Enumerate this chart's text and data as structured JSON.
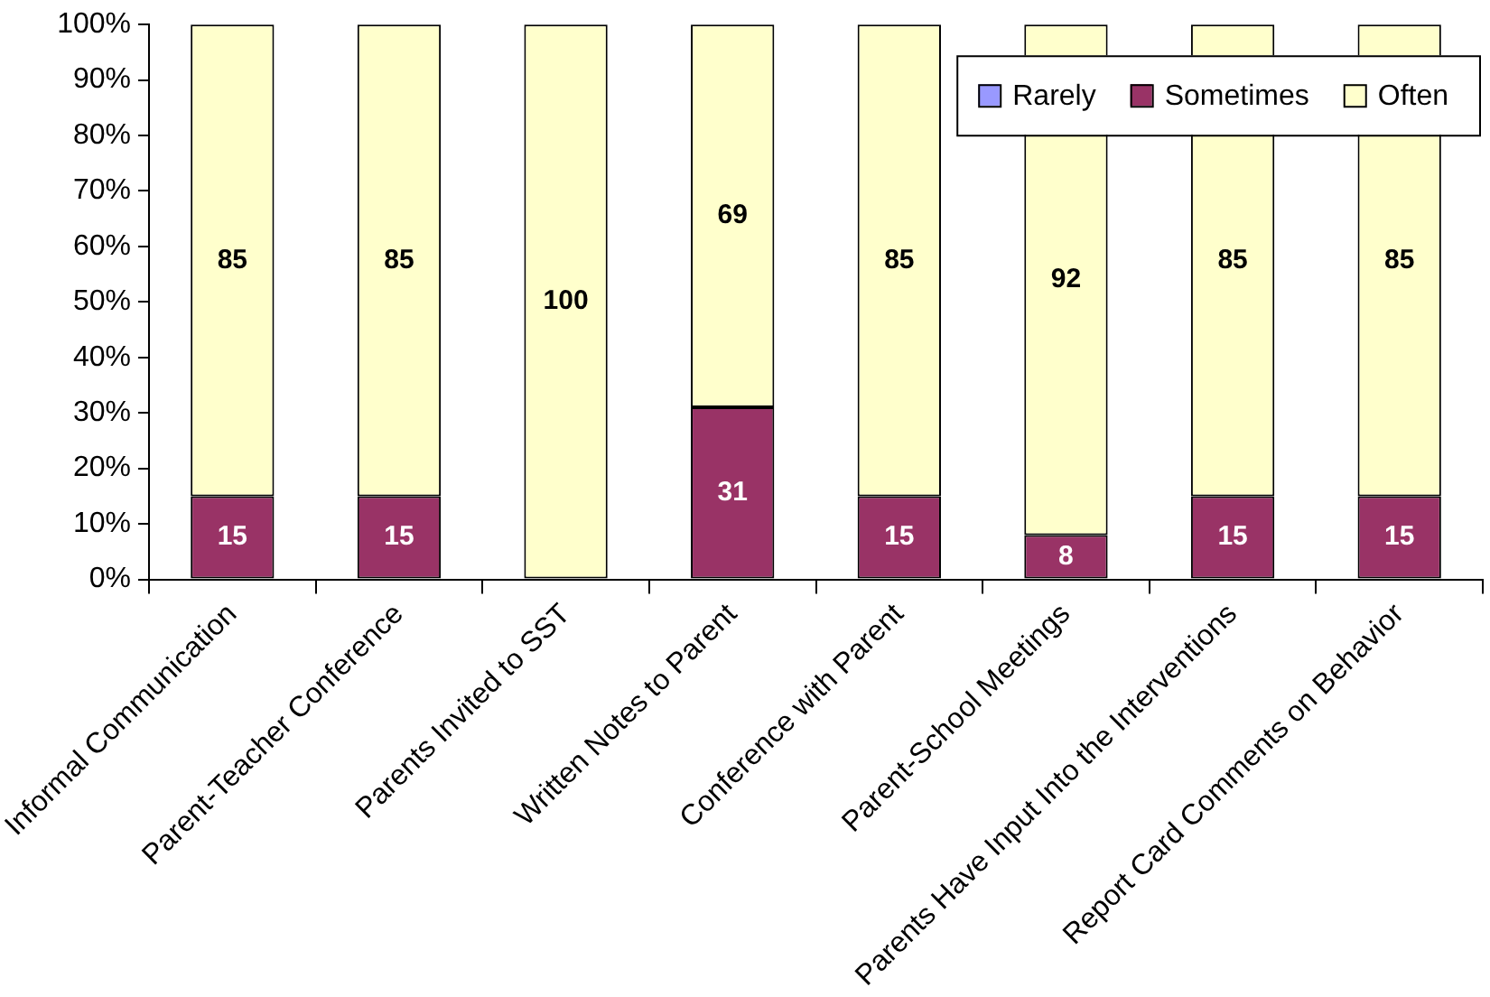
{
  "chart_data": {
    "type": "bar",
    "stacked": true,
    "categories": [
      "Informal Communication",
      "Parent-Teacher Conference",
      "Parents Invited to SST",
      "Written Notes to Parent",
      "Conference with Parent",
      "Parent-School Meetings",
      "Parents Have Input Into the Interventions",
      "Report Card Comments on Behavior"
    ],
    "series": [
      {
        "name": "Rarely",
        "color": "#9999ff",
        "values": [
          0,
          0,
          0,
          0,
          0,
          0,
          0,
          0
        ],
        "value_labels": [
          null,
          null,
          null,
          null,
          null,
          null,
          null,
          null
        ]
      },
      {
        "name": "Sometimes",
        "color": "#993366",
        "values": [
          15,
          15,
          0,
          31,
          15,
          8,
          15,
          15
        ],
        "value_labels": [
          "15",
          "15",
          null,
          "31",
          "15",
          "8",
          "15",
          "15"
        ]
      },
      {
        "name": "Often",
        "color": "#ffffcc",
        "values": [
          85,
          85,
          100,
          69,
          85,
          92,
          85,
          85
        ],
        "value_labels": [
          "85",
          "85",
          "100",
          "69",
          "85",
          "92",
          "85",
          "85"
        ]
      }
    ],
    "ylim": [
      0,
      100
    ],
    "yticks": [
      {
        "value": 0,
        "label": "0%"
      },
      {
        "value": 10,
        "label": "10%"
      },
      {
        "value": 20,
        "label": "20%"
      },
      {
        "value": 30,
        "label": "30%"
      },
      {
        "value": 40,
        "label": "40%"
      },
      {
        "value": 50,
        "label": "50%"
      },
      {
        "value": 60,
        "label": "60%"
      },
      {
        "value": 70,
        "label": "70%"
      },
      {
        "value": 80,
        "label": "80%"
      },
      {
        "value": 90,
        "label": "90%"
      },
      {
        "value": 100,
        "label": "100%"
      }
    ],
    "grid": false,
    "legend": "top right"
  }
}
